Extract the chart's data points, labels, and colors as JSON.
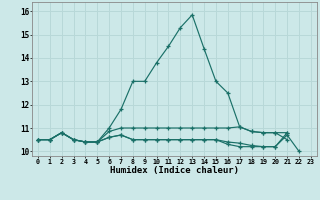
{
  "title": "",
  "xlabel": "Humidex (Indice chaleur)",
  "bg_color": "#cce8e8",
  "grid_color": "#b8d8d8",
  "line_color": "#1a7068",
  "xlim": [
    -0.5,
    23.5
  ],
  "ylim": [
    9.8,
    16.4
  ],
  "yticks": [
    10,
    11,
    12,
    13,
    14,
    15,
    16
  ],
  "xticks": [
    0,
    1,
    2,
    3,
    4,
    5,
    6,
    7,
    8,
    9,
    10,
    11,
    12,
    13,
    14,
    15,
    16,
    17,
    18,
    19,
    20,
    21,
    22,
    23
  ],
  "series1_x": [
    0,
    1,
    2,
    3,
    4,
    5,
    6,
    7,
    8,
    9,
    10,
    11,
    12,
    13,
    14,
    15,
    16,
    17,
    18,
    19,
    20,
    21
  ],
  "series1_y": [
    10.5,
    10.5,
    10.8,
    10.5,
    10.4,
    10.4,
    11.0,
    11.8,
    13.0,
    13.0,
    13.8,
    14.5,
    15.3,
    15.85,
    14.4,
    13.0,
    12.5,
    11.05,
    10.85,
    10.8,
    10.8,
    10.5
  ],
  "series2_x": [
    0,
    1,
    2,
    3,
    4,
    5,
    6,
    7,
    8,
    9,
    10,
    11,
    12,
    13,
    14,
    15,
    16,
    17,
    18,
    19,
    20,
    21
  ],
  "series2_y": [
    10.5,
    10.5,
    10.8,
    10.5,
    10.4,
    10.4,
    10.85,
    11.0,
    11.0,
    11.0,
    11.0,
    11.0,
    11.0,
    11.0,
    11.0,
    11.0,
    11.0,
    11.05,
    10.85,
    10.8,
    10.8,
    10.8
  ],
  "series3_x": [
    0,
    1,
    2,
    3,
    4,
    5,
    6,
    7,
    8,
    9,
    10,
    11,
    12,
    13,
    14,
    15,
    16,
    17,
    18,
    19,
    20,
    21
  ],
  "series3_y": [
    10.5,
    10.5,
    10.8,
    10.5,
    10.4,
    10.4,
    10.6,
    10.7,
    10.5,
    10.5,
    10.5,
    10.5,
    10.5,
    10.5,
    10.5,
    10.5,
    10.4,
    10.35,
    10.25,
    10.2,
    10.2,
    10.8
  ],
  "series4_x": [
    0,
    1,
    2,
    3,
    4,
    5,
    6,
    7,
    8,
    9,
    10,
    11,
    12,
    13,
    14,
    15,
    16,
    17,
    18,
    19,
    20,
    21,
    22
  ],
  "series4_y": [
    10.5,
    10.5,
    10.8,
    10.5,
    10.4,
    10.4,
    10.6,
    10.7,
    10.5,
    10.5,
    10.5,
    10.5,
    10.5,
    10.5,
    10.5,
    10.5,
    10.3,
    10.2,
    10.2,
    10.2,
    10.2,
    10.7,
    10.0
  ]
}
